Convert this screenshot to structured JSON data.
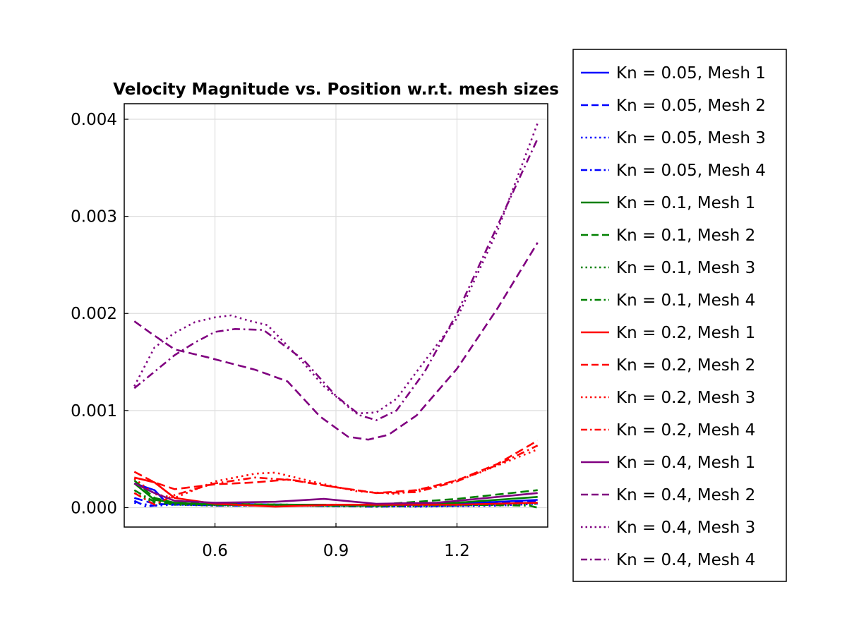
{
  "chart_data": {
    "type": "line",
    "title": "Velocity Magnitude vs. Position w.r.t. mesh sizes",
    "xlabel": "",
    "ylabel": "",
    "xlim": [
      0.375,
      1.425
    ],
    "ylim": [
      -0.0002,
      0.00416
    ],
    "xticks": [
      0.6,
      0.9,
      1.2
    ],
    "xtick_labels": [
      "0.6",
      "0.9",
      "1.2"
    ],
    "yticks": [
      0.0,
      0.001,
      0.002,
      0.003,
      0.004
    ],
    "ytick_labels": [
      "0.000",
      "0.001",
      "0.002",
      "0.003",
      "0.004"
    ],
    "grid": true,
    "legend_position": "outside-right",
    "colors": {
      "blue": "#0000ff",
      "green": "#008000",
      "red": "#ff0000",
      "purple": "#800080"
    },
    "series": [
      {
        "name": "Kn = 0.05, Mesh 1",
        "color": "#0000ff",
        "style": "solid",
        "x": [
          0.4,
          0.45,
          0.48,
          0.55,
          0.7,
          0.85,
          1.0,
          1.2,
          1.4
        ],
        "y": [
          0.00025,
          0.00018,
          5e-05,
          3e-05,
          3e-05,
          3e-05,
          2e-05,
          4e-05,
          8e-05
        ]
      },
      {
        "name": "Kn = 0.05, Mesh 2",
        "color": "#0000ff",
        "style": "dashed",
        "x": [
          0.4,
          0.45,
          0.5,
          0.6,
          0.8,
          1.0,
          1.2,
          1.4
        ],
        "y": [
          0.0001,
          4e-05,
          3e-05,
          4e-05,
          3e-05,
          2e-05,
          4e-05,
          7e-05
        ]
      },
      {
        "name": "Kn = 0.05, Mesh 3",
        "color": "#0000ff",
        "style": "dotted",
        "x": [
          0.4,
          0.45,
          0.5,
          0.7,
          0.9,
          1.1,
          1.3,
          1.4
        ],
        "y": [
          5e-05,
          2e-05,
          3e-05,
          2e-05,
          2e-05,
          1e-05,
          2e-05,
          4e-05
        ]
      },
      {
        "name": "Kn = 0.05, Mesh 4",
        "color": "#0000ff",
        "style": "dashdot",
        "x": [
          0.4,
          0.43,
          0.48,
          0.6,
          0.8,
          1.0,
          1.2,
          1.4
        ],
        "y": [
          7e-05,
          1e-05,
          4e-05,
          2e-05,
          2e-05,
          1e-05,
          2e-05,
          5e-05
        ]
      },
      {
        "name": "Kn = 0.1, Mesh 1",
        "color": "#008000",
        "style": "solid",
        "x": [
          0.4,
          0.45,
          0.5,
          0.6,
          0.8,
          1.0,
          1.2,
          1.4
        ],
        "y": [
          0.00025,
          8e-05,
          5e-05,
          3e-05,
          3e-05,
          2e-05,
          5e-05,
          0.00011
        ]
      },
      {
        "name": "Kn = 0.1, Mesh 2",
        "color": "#008000",
        "style": "dashed",
        "x": [
          0.4,
          0.45,
          0.5,
          0.6,
          0.8,
          1.0,
          1.2,
          1.4
        ],
        "y": [
          0.00028,
          0.0001,
          5e-05,
          4e-05,
          3e-05,
          3e-05,
          9e-05,
          0.00018
        ]
      },
      {
        "name": "Kn = 0.1, Mesh 3",
        "color": "#008000",
        "style": "dotted",
        "x": [
          0.4,
          0.45,
          0.5,
          0.6,
          0.8,
          1.0,
          1.2,
          1.4
        ],
        "y": [
          0.00015,
          5e-05,
          3e-05,
          2e-05,
          2e-05,
          1e-05,
          2e-05,
          4e-05
        ]
      },
      {
        "name": "Kn = 0.1, Mesh 4",
        "color": "#008000",
        "style": "dashdot",
        "x": [
          0.4,
          0.45,
          0.5,
          0.6,
          0.8,
          1.0,
          1.2,
          1.38,
          1.4
        ],
        "y": [
          0.00018,
          6e-05,
          4e-05,
          3e-05,
          2e-05,
          2e-05,
          3e-05,
          2e-05,
          0.0
        ]
      },
      {
        "name": "Kn = 0.2, Mesh 1",
        "color": "#ff0000",
        "style": "solid",
        "x": [
          0.4,
          0.45,
          0.5,
          0.6,
          0.75,
          0.9,
          1.05,
          1.2,
          1.4
        ],
        "y": [
          0.00031,
          0.00026,
          0.0001,
          4e-05,
          1e-05,
          3e-05,
          3e-05,
          3e-05,
          5e-05
        ]
      },
      {
        "name": "Kn = 0.2, Mesh 2",
        "color": "#ff0000",
        "style": "dashed",
        "x": [
          0.4,
          0.45,
          0.5,
          0.6,
          0.7,
          0.78,
          0.9,
          1.0,
          1.1,
          1.2,
          1.3,
          1.4
        ],
        "y": [
          0.00037,
          0.00026,
          0.00019,
          0.00024,
          0.00026,
          0.00029,
          0.00021,
          0.00015,
          0.00018,
          0.00028,
          0.00045,
          0.00069
        ]
      },
      {
        "name": "Kn = 0.2, Mesh 3",
        "color": "#ff0000",
        "style": "dotted",
        "x": [
          0.4,
          0.45,
          0.5,
          0.6,
          0.7,
          0.75,
          0.85,
          0.95,
          1.05,
          1.15,
          1.25,
          1.4
        ],
        "y": [
          0.0003,
          0.00014,
          0.0001,
          0.00027,
          0.00035,
          0.00036,
          0.00026,
          0.00017,
          0.00014,
          0.00022,
          0.00035,
          0.0006
        ]
      },
      {
        "name": "Kn = 0.2, Mesh 4",
        "color": "#ff0000",
        "style": "dashdot",
        "x": [
          0.4,
          0.45,
          0.5,
          0.6,
          0.7,
          0.8,
          0.9,
          1.0,
          1.1,
          1.2,
          1.3,
          1.4
        ],
        "y": [
          0.00015,
          3e-05,
          0.00013,
          0.00025,
          0.00031,
          0.00028,
          0.00021,
          0.00015,
          0.00016,
          0.00027,
          0.00044,
          0.00064
        ]
      },
      {
        "name": "Kn = 0.4, Mesh 1",
        "color": "#800080",
        "style": "solid",
        "x": [
          0.4,
          0.45,
          0.5,
          0.6,
          0.75,
          0.87,
          1.0,
          1.15,
          1.3,
          1.4
        ],
        "y": [
          0.00025,
          0.00015,
          7e-05,
          5e-05,
          6e-05,
          9e-05,
          4e-05,
          5e-05,
          0.00011,
          0.00015
        ]
      },
      {
        "name": "Kn = 0.4, Mesh 2",
        "color": "#800080",
        "style": "dashed",
        "x": [
          0.4,
          0.44,
          0.5,
          0.58,
          0.7,
          0.78,
          0.86,
          0.93,
          0.98,
          1.03,
          1.1,
          1.2,
          1.3,
          1.4
        ],
        "y": [
          0.00192,
          0.0018,
          0.00163,
          0.00155,
          0.00142,
          0.0013,
          0.00094,
          0.00073,
          0.0007,
          0.00075,
          0.00095,
          0.00143,
          0.00205,
          0.00273
        ]
      },
      {
        "name": "Kn = 0.4, Mesh 3",
        "color": "#800080",
        "style": "dotted",
        "x": [
          0.4,
          0.45,
          0.5,
          0.55,
          0.6,
          0.64,
          0.68,
          0.73,
          0.8,
          0.87,
          0.95,
          1.0,
          1.05,
          1.1,
          1.2,
          1.3,
          1.4
        ],
        "y": [
          0.00125,
          0.00165,
          0.0018,
          0.00191,
          0.00196,
          0.00198,
          0.00193,
          0.00188,
          0.00158,
          0.00125,
          0.00097,
          0.00098,
          0.00112,
          0.0014,
          0.00195,
          0.00285,
          0.00396
        ]
      },
      {
        "name": "Kn = 0.4, Mesh 4",
        "color": "#800080",
        "style": "dashdot",
        "x": [
          0.4,
          0.45,
          0.5,
          0.55,
          0.6,
          0.65,
          0.72,
          0.82,
          0.9,
          0.96,
          1.0,
          1.05,
          1.12,
          1.2,
          1.3,
          1.4
        ],
        "y": [
          0.00123,
          0.0014,
          0.00157,
          0.0017,
          0.00181,
          0.00184,
          0.00183,
          0.00152,
          0.00115,
          0.00095,
          0.0009,
          0.001,
          0.0014,
          0.002,
          0.0029,
          0.0038
        ]
      }
    ]
  }
}
